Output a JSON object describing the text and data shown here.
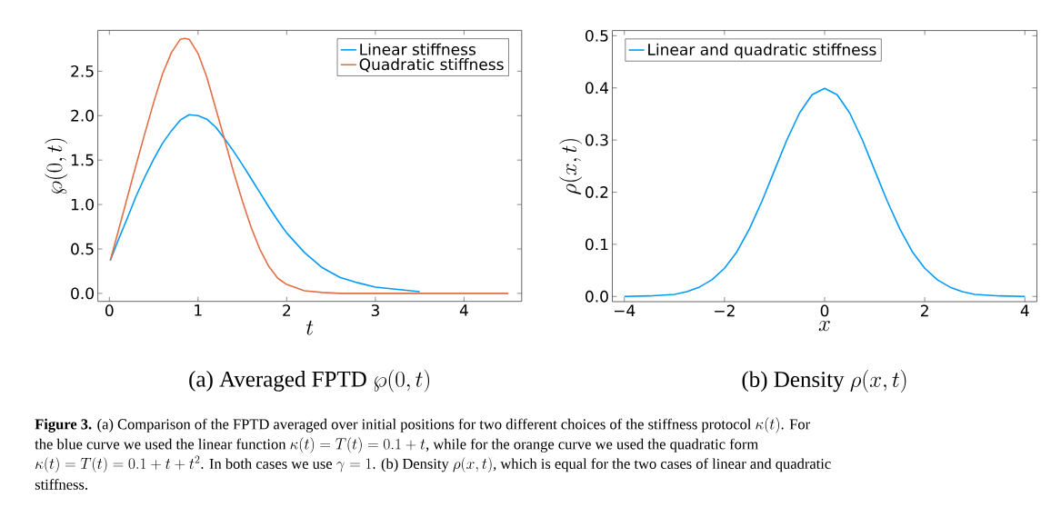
{
  "chart_data": [
    {
      "type": "line",
      "title": "\\textrm{(a) Averaged FPTD }\\wp(0,t)",
      "xlabel": "t",
      "ylabel": "\\wp(0,t)",
      "xlim": [
        -0.13,
        4.65
      ],
      "ylim": [
        -0.09,
        2.96
      ],
      "xticks": [
        0,
        1,
        2,
        3,
        4
      ],
      "yticks": [
        {
          "value": 0,
          "label": "0.0"
        },
        {
          "value": 0.5,
          "label": "0.5"
        },
        {
          "value": 1,
          "label": "1.0"
        },
        {
          "value": 1.5,
          "label": "1.5"
        },
        {
          "value": 2,
          "label": "2.0"
        },
        {
          "value": 2.5,
          "label": "2.5"
        }
      ],
      "legend": "top right",
      "grid": false,
      "marker": "none",
      "line_style": "solid",
      "series": [
        {
          "name": "Linear stiffness",
          "color": "#009af9",
          "x": [
            0.01,
            0.1,
            0.2,
            0.3,
            0.4,
            0.5,
            0.6,
            0.7,
            0.8,
            0.9,
            1.0,
            1.1,
            1.2,
            1.3,
            1.4,
            1.5,
            1.6,
            1.7,
            1.8,
            1.9,
            2.0,
            2.2,
            2.4,
            2.6,
            2.8,
            3.0,
            3.2,
            3.5
          ],
          "values": [
            0.37,
            0.6,
            0.84,
            1.09,
            1.31,
            1.51,
            1.69,
            1.83,
            1.95,
            2.01,
            2.0,
            1.96,
            1.87,
            1.74,
            1.6,
            1.45,
            1.29,
            1.13,
            0.97,
            0.82,
            0.68,
            0.46,
            0.29,
            0.18,
            0.12,
            0.07,
            0.05,
            0.02
          ]
        },
        {
          "name": "Quadratic stiffness",
          "color": "#e26f46",
          "x": [
            0.01,
            0.1,
            0.2,
            0.3,
            0.4,
            0.5,
            0.6,
            0.7,
            0.8,
            0.85,
            0.9,
            1.0,
            1.1,
            1.2,
            1.3,
            1.4,
            1.5,
            1.6,
            1.7,
            1.8,
            1.9,
            2.0,
            2.2,
            2.4,
            2.6,
            3.0,
            4.5
          ],
          "values": [
            0.37,
            0.7,
            1.07,
            1.44,
            1.8,
            2.15,
            2.47,
            2.71,
            2.86,
            2.87,
            2.86,
            2.7,
            2.43,
            2.08,
            1.73,
            1.37,
            1.04,
            0.74,
            0.49,
            0.3,
            0.17,
            0.1,
            0.03,
            0.01,
            0,
            0,
            0
          ]
        }
      ],
      "annotations": [
        "\\textrm{\\textbf{Figure 3.} (a) Comparison of the FPTD averaged over initial positions for two different choices of the stiffness protocol }\\kappa(t)\\textrm{. For}",
        "\\textrm{the blue curve we used the linear function }\\kappa(t)=T(t)=0.1+t\\textrm{, while for the orange curve we used the quadratic form}",
        "\\kappa(t)=T(t)=0.1+t+t^2\\textrm{. In both cases we use }\\gamma=1\\textrm{. (b) Density }\\rho(x,t)\\textrm{, which is equal for the two cases of linear and quadratic}",
        "\\textrm{stiffness.}"
      ]
    },
    {
      "type": "line",
      "title": "\\textrm{(b) Density }\\rho(x,t)",
      "xlabel": "x",
      "ylabel": "\\rho(x,t)",
      "xlim": [
        -4.24,
        4.24
      ],
      "ylim": [
        -0.01,
        0.51
      ],
      "xticks": [
        {
          "value": -4,
          "label": "−4"
        },
        {
          "value": -2,
          "label": "−2"
        },
        0,
        2,
        4
      ],
      "yticks": [
        {
          "value": 0,
          "label": "0.0"
        },
        0.1,
        0.2,
        0.3,
        0.4,
        0.5
      ],
      "legend": "top left",
      "grid": false,
      "marker": "none",
      "line_style": "solid",
      "series": [
        {
          "name": "Linear and quadratic stiffness",
          "color": "#009af9",
          "x": [
            -4,
            -3.5,
            -3,
            -2.75,
            -2.5,
            -2.25,
            -2,
            -1.75,
            -1.5,
            -1.25,
            -1,
            -0.75,
            -0.5,
            -0.25,
            0,
            0.25,
            0.5,
            0.75,
            1,
            1.25,
            1.5,
            1.75,
            2,
            2.25,
            2.5,
            2.75,
            3,
            3.5,
            4
          ],
          "values": [
            0,
            0.001,
            0.004,
            0.009,
            0.018,
            0.032,
            0.054,
            0.086,
            0.13,
            0.183,
            0.242,
            0.301,
            0.352,
            0.387,
            0.399,
            0.387,
            0.352,
            0.301,
            0.242,
            0.183,
            0.13,
            0.086,
            0.054,
            0.032,
            0.018,
            0.009,
            0.004,
            0.001,
            0
          ]
        }
      ]
    }
  ]
}
